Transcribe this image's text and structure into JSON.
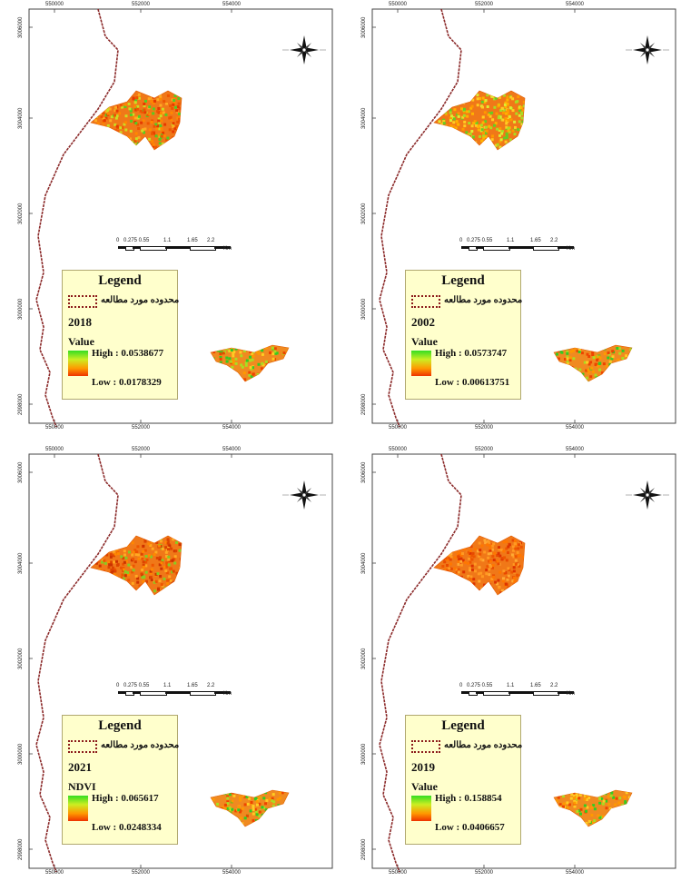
{
  "panels": [
    {
      "year": "2018",
      "field_label": "Value",
      "legend_title": "Legend",
      "boundary_label": "محدوده مورد مطالعه",
      "high_label": "High : 0.0538677",
      "low_label": "Low : 0.0178329",
      "scale_labels": [
        "0",
        "0.275 0.55",
        "1.1",
        "1.65",
        "2.2"
      ],
      "scale_unit": "Km"
    },
    {
      "year": "2002",
      "field_label": "Value",
      "legend_title": "Legend",
      "boundary_label": "محدوده مورد مطالعه",
      "high_label": "High : 0.0573747",
      "low_label": "Low : 0.00613751",
      "scale_labels": [
        "0",
        "0.275 0.55",
        "1.1",
        "1.65",
        "2.2"
      ],
      "scale_unit": "Km"
    },
    {
      "year": "2021",
      "field_label": "NDVI",
      "legend_title": "Legend",
      "boundary_label": "محدوده مورد مطالعه",
      "high_label": "High : 0.065617",
      "low_label": "Low : 0.0248334",
      "scale_labels": [
        "0",
        "0.275 0.55",
        "1.1",
        "1.65",
        "2.2"
      ],
      "scale_unit": "Km"
    },
    {
      "year": "2019",
      "field_label": "Value",
      "legend_title": "Legend",
      "boundary_label": "محدوده مورد مطالعه",
      "high_label": "High : 0.158854",
      "low_label": "Low : 0.0406657",
      "scale_labels": [
        "0",
        "0.275 0.55",
        "1.1",
        "1.65",
        "2.2"
      ],
      "scale_unit": "Km"
    }
  ],
  "x_ticks": [
    "550000",
    "552000",
    "554000"
  ],
  "y_ticks": [
    "3006000",
    "3004000",
    "3002000",
    "3000000",
    "2998000"
  ],
  "north_arrow_icon": "compass-rose-icon",
  "colors": {
    "legend_bg": "#ffffcc",
    "river": "#8b2a2a",
    "boundary": "#8b1a1a",
    "ndvi_high": "#33dd22",
    "ndvi_mid": "#ff9900",
    "ndvi_low": "#ee3300"
  }
}
